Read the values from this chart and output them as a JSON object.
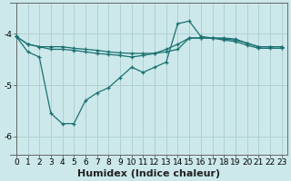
{
  "x": [
    0,
    1,
    2,
    3,
    4,
    5,
    6,
    7,
    8,
    9,
    10,
    11,
    12,
    13,
    14,
    15,
    16,
    17,
    18,
    19,
    20,
    21,
    22,
    23
  ],
  "line1": [
    -4.05,
    -4.2,
    -4.25,
    -4.25,
    -4.25,
    -4.28,
    -4.3,
    -4.32,
    -4.35,
    -4.37,
    -4.38,
    -4.38,
    -4.38,
    -4.35,
    -4.3,
    -4.08,
    -4.08,
    -4.08,
    -4.1,
    -4.12,
    -4.18,
    -4.25,
    -4.25,
    -4.25
  ],
  "line2": [
    -4.05,
    -4.2,
    -4.25,
    -4.3,
    -4.3,
    -4.32,
    -4.35,
    -4.38,
    -4.4,
    -4.42,
    -4.45,
    -4.42,
    -4.38,
    -4.3,
    -4.2,
    -4.08,
    -4.08,
    -4.08,
    -4.12,
    -4.15,
    -4.22,
    -4.28,
    -4.28,
    -4.28
  ],
  "line3": [
    -4.05,
    -4.35,
    -4.45,
    -5.55,
    -5.75,
    -5.75,
    -5.3,
    -5.15,
    -5.05,
    -4.85,
    -4.65,
    -4.75,
    -4.65,
    -4.55,
    -3.8,
    -3.75,
    -4.05,
    -4.08,
    -4.08,
    -4.1,
    -4.18,
    -4.25,
    -4.25,
    -4.25
  ],
  "bg_color": "#cce8ea",
  "line_color": "#1a7070",
  "grid_color_major": "#b0d0d4",
  "grid_color_minor": "#c8e4e8",
  "xlabel": "Humidex (Indice chaleur)",
  "xlabel_fontsize": 8,
  "tick_fontsize": 6.5,
  "ylim": [
    -6.35,
    -3.4
  ],
  "xlim": [
    -0.5,
    23.5
  ],
  "yticks": [
    -6,
    -5,
    -4
  ],
  "xticks": [
    0,
    1,
    2,
    3,
    4,
    5,
    6,
    7,
    8,
    9,
    10,
    11,
    12,
    13,
    14,
    15,
    16,
    17,
    18,
    19,
    20,
    21,
    22,
    23
  ]
}
